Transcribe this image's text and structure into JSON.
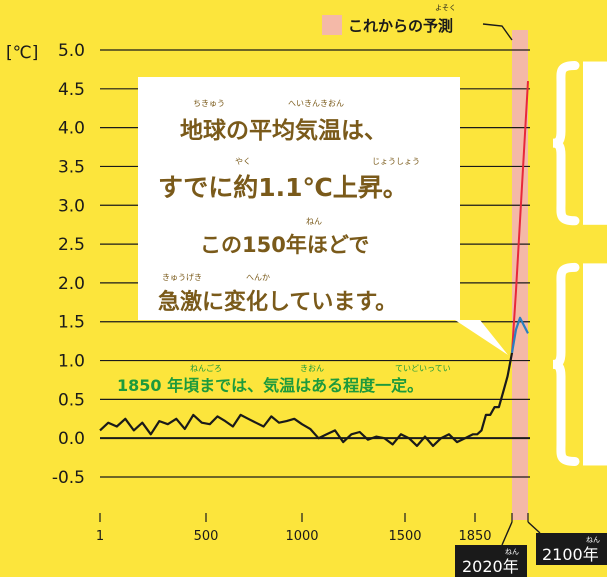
{
  "forecast_legend": {
    "label": "これからの予測",
    "ruby": "よそく",
    "swatch_color": "#F4B9A8"
  },
  "unit_label": "[℃]",
  "callout": {
    "lines": [
      "地球の平均気温は、",
      "すでに約1.1℃上昇。",
      "この150年ほどで",
      "急激に変化しています。"
    ],
    "rubies": [
      {
        "line": 0,
        "text": "ちきゅう"
      },
      {
        "line": 0,
        "text": "へいきんきおん"
      },
      {
        "line": 1,
        "text": "やく"
      },
      {
        "line": 1,
        "text": "じょうしょう"
      },
      {
        "line": 2,
        "text": "ねん"
      },
      {
        "line": 3,
        "text": "きゅうげき"
      },
      {
        "line": 3,
        "text": "へんか"
      }
    ]
  },
  "note": {
    "text": "1850 年頃までは、気温はある程度一定。",
    "rubies": [
      "ねんごろ",
      "きおん",
      "ていどいってい"
    ]
  },
  "badges": [
    {
      "label": "2020年",
      "ruby": "ねん"
    },
    {
      "label": "2100年",
      "ruby": "ねん"
    }
  ],
  "colors": {
    "background": "#FCE53C",
    "history_line": "#1a1a1a",
    "projection_high": "#E8283A",
    "projection_low": "#2A7FC0",
    "forecast_band": "#F4B9A8",
    "callout_text": "#7a5a1a",
    "note_text": "#1d9a3c"
  },
  "chart_data": {
    "type": "line",
    "ylabel": "[℃]",
    "ylim": [
      -0.5,
      5.0
    ],
    "y_ticks": [
      "5.0",
      "4.5",
      "4.0",
      "3.5",
      "3.0",
      "2.5",
      "2.0",
      "1.5",
      "1.0",
      "0.5",
      "0.0",
      "-0.5"
    ],
    "y_tick_values": [
      5.0,
      4.5,
      4.0,
      3.5,
      3.0,
      2.5,
      2.0,
      1.5,
      1.0,
      0.5,
      0.0,
      -0.5
    ],
    "x_ticks": [
      "1",
      "500",
      "1000",
      "1500",
      "1850"
    ],
    "x_tick_values": [
      1,
      500,
      1000,
      1500,
      1850
    ],
    "forecast_range": [
      2020,
      2100
    ],
    "grid": "horizontal",
    "series": [
      {
        "key": "history",
        "x": [
          1,
          40,
          80,
          120,
          160,
          200,
          240,
          280,
          320,
          360,
          400,
          440,
          480,
          520,
          560,
          600,
          640,
          680,
          720,
          760,
          800,
          840,
          880,
          920,
          960,
          1000,
          1040,
          1080,
          1120,
          1160,
          1200,
          1240,
          1280,
          1320,
          1360,
          1400,
          1440,
          1480,
          1520,
          1560,
          1600,
          1640,
          1680,
          1720,
          1760,
          1800,
          1840,
          1860,
          1880,
          1900,
          1920,
          1940,
          1960,
          1980,
          2000,
          2020
        ],
        "y": [
          0.1,
          0.2,
          0.15,
          0.25,
          0.1,
          0.2,
          0.05,
          0.22,
          0.18,
          0.25,
          0.12,
          0.3,
          0.2,
          0.18,
          0.28,
          0.22,
          0.15,
          0.3,
          0.25,
          0.2,
          0.15,
          0.28,
          0.2,
          0.22,
          0.25,
          0.18,
          0.12,
          0.0,
          0.05,
          0.1,
          -0.05,
          0.05,
          0.08,
          -0.02,
          0.02,
          0.0,
          -0.08,
          0.05,
          0.0,
          -0.1,
          0.02,
          -0.1,
          0.0,
          0.05,
          -0.05,
          0.0,
          0.05,
          0.05,
          0.1,
          0.3,
          0.3,
          0.4,
          0.4,
          0.6,
          0.8,
          1.1
        ]
      },
      {
        "key": "projection_high",
        "x": [
          2020,
          2040,
          2060,
          2080,
          2100
        ],
        "y": [
          1.1,
          1.9,
          2.8,
          3.7,
          4.6
        ]
      },
      {
        "key": "projection_low",
        "x": [
          2020,
          2040,
          2060,
          2080,
          2100
        ],
        "y": [
          1.1,
          1.4,
          1.55,
          1.45,
          1.35
        ]
      }
    ]
  },
  "right_braces": [
    {
      "y_from": 4.8,
      "y_to": 2.8
    },
    {
      "y_from": 2.2,
      "y_to": -0.3
    }
  ]
}
